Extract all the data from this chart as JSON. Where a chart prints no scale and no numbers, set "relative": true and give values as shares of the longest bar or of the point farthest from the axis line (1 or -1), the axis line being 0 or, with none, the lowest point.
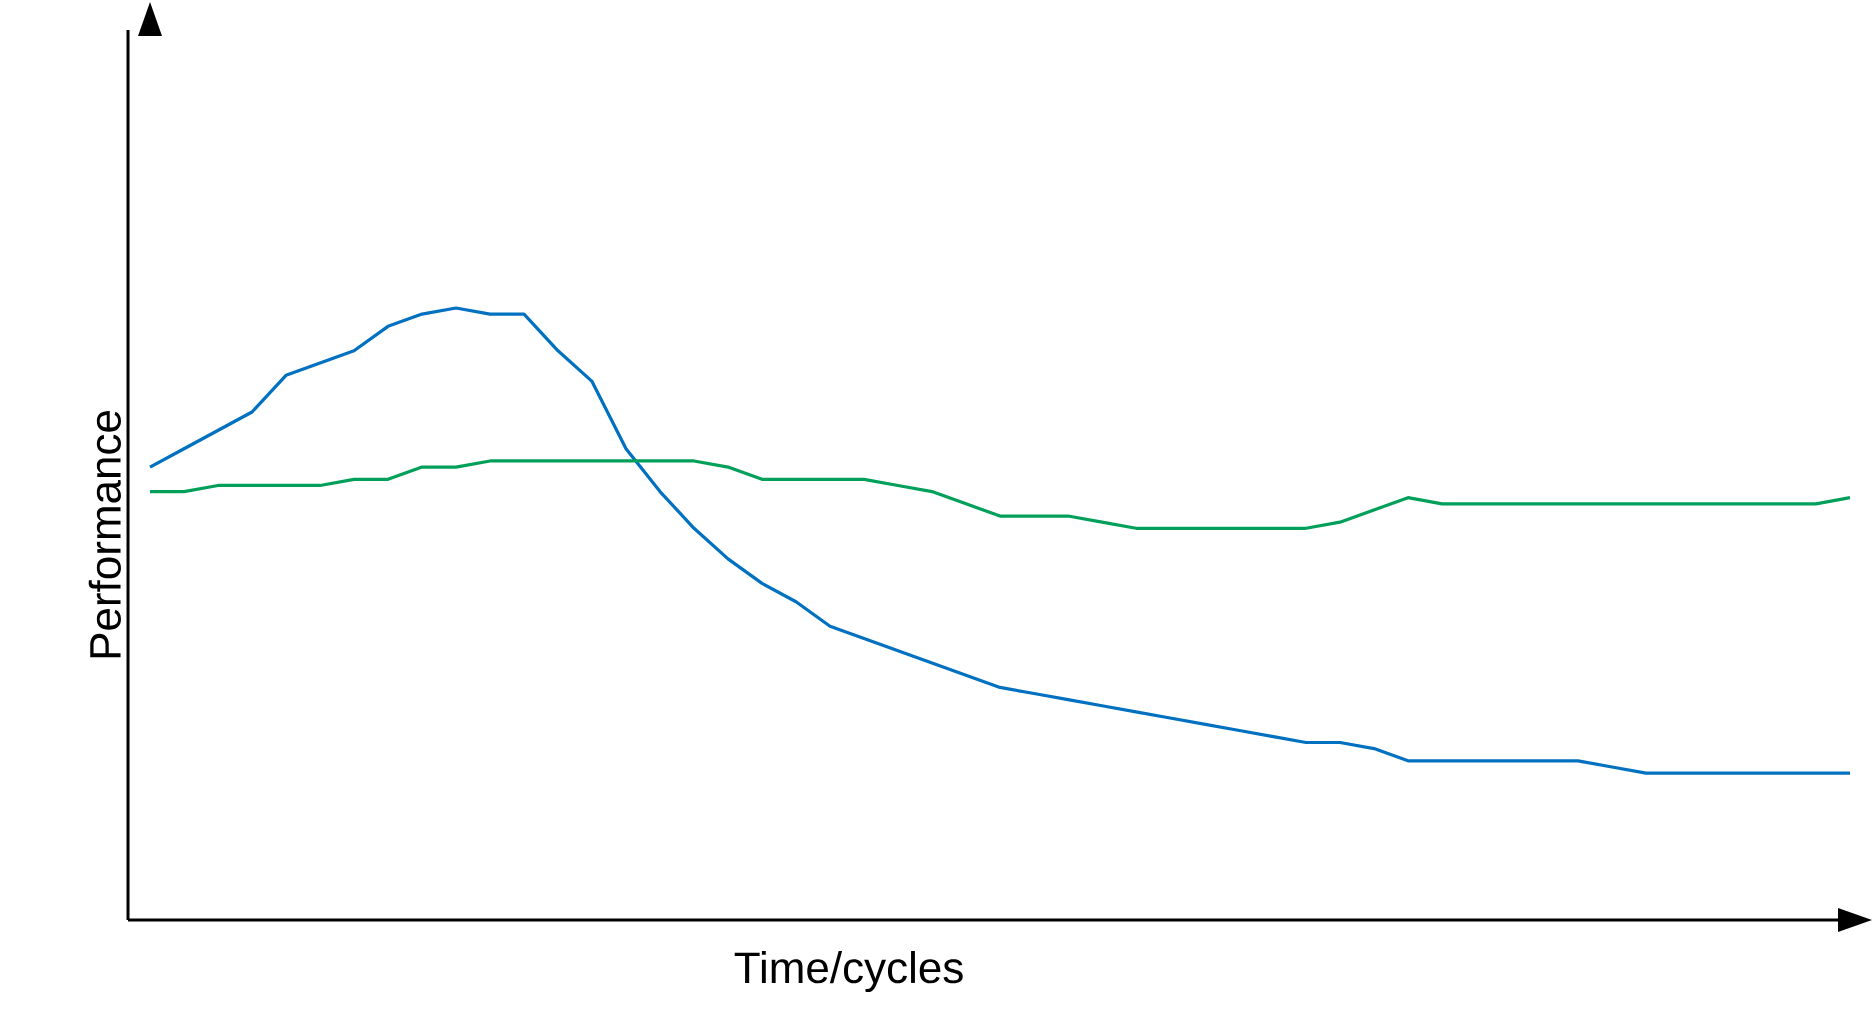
{
  "chart_data": {
    "type": "line",
    "relative": true,
    "xlabel": "Time/cycles",
    "ylabel": "Performance",
    "categories": [
      null,
      null,
      null,
      null,
      null,
      null,
      null,
      null,
      null,
      null,
      null,
      null,
      null,
      null,
      null,
      null,
      null,
      null,
      null,
      null,
      null,
      null,
      null,
      null,
      null,
      null,
      null,
      null,
      null,
      null,
      null,
      null,
      null,
      null,
      null,
      null,
      null,
      null,
      null,
      null,
      null,
      null,
      null,
      null,
      null,
      null,
      null,
      null,
      null,
      null,
      null
    ],
    "series": [
      {
        "color": "#0070c0",
        "values": [
          0.74,
          0.77,
          0.8,
          0.83,
          0.89,
          0.91,
          0.93,
          0.97,
          0.99,
          1.0,
          0.99,
          0.99,
          0.93,
          0.88,
          0.77,
          0.7,
          0.64,
          0.59,
          0.55,
          0.52,
          0.48,
          0.46,
          0.44,
          0.42,
          0.4,
          0.38,
          0.37,
          0.36,
          0.35,
          0.34,
          0.33,
          0.32,
          0.31,
          0.3,
          0.29,
          0.29,
          0.28,
          0.26,
          0.26,
          0.26,
          0.26,
          0.26,
          0.26,
          0.25,
          0.24,
          0.24,
          0.24,
          0.24,
          0.24,
          0.24,
          0.24
        ]
      },
      {
        "color": "#00a05a",
        "values": [
          0.7,
          0.7,
          0.71,
          0.71,
          0.71,
          0.71,
          0.72,
          0.72,
          0.74,
          0.74,
          0.75,
          0.75,
          0.75,
          0.75,
          0.75,
          0.75,
          0.75,
          0.74,
          0.72,
          0.72,
          0.72,
          0.72,
          0.71,
          0.7,
          0.68,
          0.66,
          0.66,
          0.66,
          0.65,
          0.64,
          0.64,
          0.64,
          0.64,
          0.64,
          0.64,
          0.65,
          0.67,
          0.69,
          0.68,
          0.68,
          0.68,
          0.68,
          0.68,
          0.68,
          0.68,
          0.68,
          0.68,
          0.68,
          0.68,
          0.68,
          0.69
        ]
      }
    ]
  }
}
